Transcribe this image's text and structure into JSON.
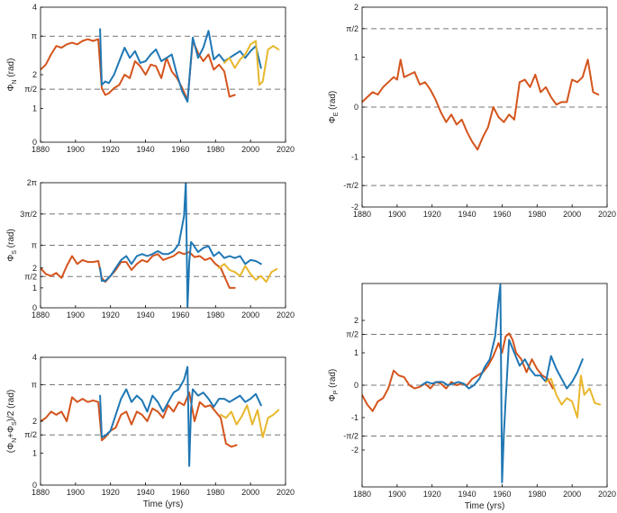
{
  "colors": {
    "blue": "#1f77b4",
    "orange": "#d4541c",
    "yellow": "#e8b72c",
    "ref_line": "#777777",
    "axis": "#000000"
  },
  "chart_data": [
    {
      "id": "phiN",
      "type": "line",
      "ylabel": "Φ_N (rad)",
      "ylabel_main": "Φ",
      "ylabel_sub": "N",
      "ylabel_tail": " (rad)",
      "xlabel": "",
      "xlim": [
        1880,
        2020
      ],
      "ylim": [
        0,
        4
      ],
      "xticks": [
        1880,
        1900,
        1920,
        1940,
        1960,
        1980,
        2000,
        2020
      ],
      "xtick_labels": [
        "1880",
        "1900",
        "1920",
        "1940",
        "1960",
        "1980",
        "2000",
        "2020"
      ],
      "yticks": [
        0,
        1,
        1.5708,
        2,
        3.1416,
        4
      ],
      "ytick_labels": [
        "0",
        "1",
        "π/2",
        "2",
        "π",
        "4"
      ],
      "ref_lines": [
        1.5708,
        3.1416
      ],
      "series": [
        {
          "color": "orange",
          "x": [
            1880,
            1883,
            1886,
            1889,
            1892,
            1895,
            1898,
            1901,
            1904,
            1907,
            1910,
            1913,
            1915,
            1917,
            1919,
            1922,
            1925,
            1928,
            1931,
            1934,
            1937,
            1940,
            1943,
            1946,
            1949,
            1952,
            1955,
            1958,
            1961,
            1964,
            1967,
            1970,
            1973,
            1976,
            1979,
            1982,
            1985,
            1988,
            1991
          ],
          "y": [
            2.15,
            2.3,
            2.6,
            2.85,
            2.8,
            2.9,
            2.95,
            2.9,
            3.0,
            3.05,
            3.0,
            3.05,
            1.6,
            1.4,
            1.45,
            1.6,
            1.7,
            2.0,
            1.9,
            2.4,
            2.25,
            2.0,
            2.3,
            2.25,
            1.9,
            2.5,
            2.1,
            1.9,
            1.6,
            1.25,
            3.0,
            2.65,
            2.4,
            2.6,
            2.15,
            2.3,
            2.1,
            1.35,
            1.4
          ]
        },
        {
          "color": "blue",
          "x": [
            1914,
            1915,
            1917,
            1919,
            1922,
            1925,
            1928,
            1931,
            1934,
            1937,
            1940,
            1943,
            1946,
            1949,
            1952,
            1955,
            1958,
            1961,
            1964,
            1967,
            1970,
            1973,
            1976,
            1979,
            1982,
            1985,
            1988,
            1991,
            1994,
            1997,
            2000,
            2003,
            2006
          ],
          "y": [
            3.35,
            1.7,
            1.8,
            1.75,
            2.0,
            2.4,
            2.8,
            2.5,
            2.7,
            2.35,
            2.4,
            2.6,
            2.75,
            2.4,
            2.5,
            2.6,
            2.0,
            1.5,
            1.2,
            3.1,
            2.5,
            2.8,
            3.3,
            2.45,
            2.6,
            2.4,
            2.5,
            2.6,
            2.7,
            2.5,
            2.7,
            2.85,
            2.2
          ]
        },
        {
          "color": "yellow",
          "x": [
            1985,
            1988,
            1991,
            1994,
            1997,
            2000,
            2003,
            2005,
            2007,
            2010,
            2013,
            2016
          ],
          "y": [
            2.35,
            2.5,
            2.2,
            2.45,
            2.6,
            2.9,
            3.0,
            1.7,
            1.8,
            2.75,
            2.85,
            2.75
          ]
        }
      ]
    },
    {
      "id": "phiE",
      "type": "line",
      "ylabel": "Φ_E (rad)",
      "ylabel_main": "Φ",
      "ylabel_sub": "E",
      "ylabel_tail": " (rad)",
      "xlabel": "",
      "xlim": [
        1880,
        2020
      ],
      "ylim": [
        -2,
        2
      ],
      "xticks": [
        1880,
        1900,
        1920,
        1940,
        1960,
        1980,
        2000,
        2020
      ],
      "xtick_labels": [
        "1880",
        "1900",
        "1920",
        "1940",
        "1960",
        "1980",
        "2000",
        "2020"
      ],
      "yticks": [
        -2,
        -1.5708,
        -1,
        0,
        1,
        1.5708,
        2
      ],
      "ytick_labels": [
        "-2",
        "-π/2",
        "-1",
        "0",
        "1",
        "π/2",
        "2"
      ],
      "ref_lines": [
        -1.5708,
        0,
        1.5708
      ],
      "series": [
        {
          "color": "orange",
          "x": [
            1880,
            1883,
            1886,
            1889,
            1892,
            1895,
            1898,
            1900,
            1902,
            1904,
            1907,
            1910,
            1913,
            1916,
            1919,
            1922,
            1925,
            1928,
            1931,
            1934,
            1937,
            1940,
            1943,
            1946,
            1949,
            1952,
            1955,
            1958,
            1961,
            1964,
            1967,
            1970,
            1973,
            1976,
            1979,
            1982,
            1985,
            1988,
            1991,
            1994,
            1997,
            2000,
            2003,
            2006,
            2009,
            2012,
            2015
          ],
          "y": [
            0.1,
            0.2,
            0.3,
            0.25,
            0.4,
            0.5,
            0.6,
            0.55,
            0.95,
            0.6,
            0.65,
            0.7,
            0.45,
            0.5,
            0.35,
            0.15,
            -0.1,
            -0.3,
            -0.15,
            -0.35,
            -0.25,
            -0.5,
            -0.7,
            -0.85,
            -0.6,
            -0.4,
            0.0,
            -0.2,
            -0.3,
            -0.15,
            -0.25,
            0.5,
            0.55,
            0.4,
            0.65,
            0.3,
            0.4,
            0.2,
            0.05,
            0.1,
            0.1,
            0.55,
            0.5,
            0.6,
            0.95,
            0.3,
            0.25
          ]
        }
      ]
    },
    {
      "id": "phiS",
      "type": "line",
      "ylabel": "Φ_S (rad)",
      "ylabel_main": "Φ",
      "ylabel_sub": "S",
      "ylabel_tail": " (rad)",
      "xlabel": "",
      "xlim": [
        1880,
        2020
      ],
      "ylim": [
        0,
        6.2832
      ],
      "xticks": [
        1880,
        1900,
        1920,
        1940,
        1960,
        1980,
        2000,
        2020
      ],
      "xtick_labels": [
        "1880",
        "1900",
        "1920",
        "1940",
        "1960",
        "1980",
        "2000",
        "2020"
      ],
      "yticks": [
        0,
        1,
        1.5708,
        2,
        3.1416,
        4.7124,
        6.2832
      ],
      "ytick_labels": [
        "0",
        "1",
        "π/2",
        "2",
        "π",
        "3π/2",
        "2π"
      ],
      "ref_lines": [
        1.5708,
        3.1416,
        4.7124
      ],
      "series": [
        {
          "color": "orange",
          "x": [
            1880,
            1883,
            1886,
            1889,
            1892,
            1895,
            1898,
            1901,
            1904,
            1907,
            1910,
            1913,
            1915,
            1917,
            1920,
            1923,
            1926,
            1929,
            1932,
            1935,
            1938,
            1941,
            1944,
            1947,
            1950,
            1953,
            1956,
            1959,
            1962,
            1965,
            1968,
            1971,
            1974,
            1977,
            1980,
            1983,
            1986,
            1988,
            1991
          ],
          "y": [
            2.0,
            1.7,
            1.6,
            1.75,
            1.5,
            2.1,
            2.6,
            2.2,
            2.4,
            2.3,
            2.3,
            2.35,
            1.5,
            1.3,
            1.6,
            1.9,
            2.3,
            2.3,
            1.9,
            2.2,
            2.4,
            2.3,
            2.6,
            2.7,
            2.4,
            2.5,
            2.6,
            2.8,
            2.7,
            2.8,
            2.55,
            2.6,
            2.4,
            2.5,
            2.2,
            2.0,
            1.4,
            1.0,
            1.0
          ]
        },
        {
          "color": "blue",
          "x": [
            1914,
            1915,
            1917,
            1920,
            1923,
            1926,
            1929,
            1932,
            1935,
            1938,
            1941,
            1944,
            1947,
            1950,
            1953,
            1956,
            1959,
            1962,
            1963,
            1964,
            1965,
            1966,
            1967,
            1970,
            1973,
            1976,
            1979,
            1982,
            1985,
            1988,
            1991,
            1994,
            1997,
            2000,
            2003,
            2006
          ],
          "y": [
            2.0,
            1.35,
            1.35,
            1.6,
            2.0,
            2.4,
            2.6,
            2.2,
            2.6,
            2.7,
            2.6,
            2.7,
            2.85,
            2.7,
            2.7,
            2.85,
            3.2,
            4.6,
            6.3,
            0.05,
            2.3,
            3.3,
            3.2,
            2.8,
            3.0,
            3.1,
            2.6,
            2.8,
            2.5,
            2.6,
            2.5,
            2.6,
            2.2,
            2.4,
            2.35,
            2.2
          ]
        },
        {
          "color": "yellow",
          "x": [
            1982,
            1985,
            1988,
            1991,
            1994,
            1997,
            2000,
            2003,
            2006,
            2009,
            2012,
            2015
          ],
          "y": [
            2.0,
            2.2,
            1.9,
            1.8,
            1.6,
            2.1,
            1.7,
            1.4,
            1.6,
            1.3,
            1.8,
            1.95
          ]
        }
      ]
    },
    {
      "id": "phiNS",
      "type": "line",
      "ylabel": "(Φ_N+Φ_S)/2 (rad)",
      "ylabel_main": "(Φ",
      "ylabel_sub": "N",
      "ylabel_mid": "+Φ",
      "ylabel_sub2": "S",
      "ylabel_tail": ")/2 (rad)",
      "xlabel": "Time (yrs)",
      "xlim": [
        1880,
        2020
      ],
      "ylim": [
        0,
        4
      ],
      "xticks": [
        1880,
        1900,
        1920,
        1940,
        1960,
        1980,
        2000,
        2020
      ],
      "xtick_labels": [
        "1880",
        "1900",
        "1920",
        "1940",
        "1960",
        "1980",
        "2000",
        "2020"
      ],
      "yticks": [
        0,
        1,
        1.5708,
        2,
        3.1416,
        4
      ],
      "ytick_labels": [
        "0",
        "1",
        "π/2",
        "2",
        "π",
        "4"
      ],
      "ref_lines": [
        1.5708,
        3.1416
      ],
      "series": [
        {
          "color": "orange",
          "x": [
            1880,
            1883,
            1886,
            1889,
            1892,
            1895,
            1898,
            1901,
            1904,
            1907,
            1910,
            1913,
            1915,
            1917,
            1920,
            1923,
            1926,
            1929,
            1932,
            1935,
            1938,
            1941,
            1944,
            1947,
            1950,
            1953,
            1956,
            1959,
            1962,
            1965,
            1968,
            1971,
            1974,
            1977,
            1980,
            1983,
            1986,
            1989,
            1992
          ],
          "y": [
            2.0,
            2.1,
            2.3,
            2.2,
            2.3,
            2.0,
            2.75,
            2.6,
            2.7,
            2.6,
            2.65,
            2.6,
            1.4,
            1.5,
            1.7,
            1.8,
            2.2,
            2.3,
            1.9,
            2.3,
            2.2,
            2.0,
            2.4,
            2.3,
            2.1,
            2.5,
            2.3,
            2.6,
            2.5,
            2.9,
            2.0,
            2.6,
            2.45,
            2.5,
            2.3,
            2.1,
            1.3,
            1.2,
            1.25
          ]
        },
        {
          "color": "blue",
          "x": [
            1914,
            1915,
            1917,
            1920,
            1923,
            1926,
            1929,
            1932,
            1935,
            1938,
            1941,
            1944,
            1947,
            1950,
            1953,
            1956,
            1959,
            1962,
            1964,
            1965,
            1966,
            1967,
            1970,
            1973,
            1976,
            1979,
            1982,
            1985,
            1988,
            1991,
            1994,
            1997,
            2000,
            2003,
            2006
          ],
          "y": [
            2.8,
            1.5,
            1.55,
            1.7,
            2.2,
            2.7,
            3.0,
            2.6,
            2.8,
            2.65,
            2.3,
            2.8,
            2.6,
            2.3,
            2.6,
            2.9,
            3.0,
            3.3,
            3.7,
            0.6,
            2.4,
            3.0,
            2.8,
            2.9,
            2.7,
            2.45,
            2.7,
            2.7,
            2.6,
            2.7,
            2.8,
            2.6,
            2.7,
            2.85,
            2.5
          ]
        },
        {
          "color": "yellow",
          "x": [
            1983,
            1986,
            1989,
            1992,
            1995,
            1998,
            2001,
            2004,
            2007,
            2010,
            2013,
            2016
          ],
          "y": [
            2.2,
            2.1,
            2.3,
            1.9,
            2.15,
            2.5,
            1.9,
            2.35,
            1.5,
            2.1,
            2.2,
            2.35
          ]
        }
      ]
    },
    {
      "id": "phiP",
      "type": "line",
      "ylabel": "Φ_P (rad)",
      "ylabel_main": "Φ",
      "ylabel_sub": "P",
      "ylabel_tail": " (rad)",
      "xlabel": "Time (yrs)",
      "xlim": [
        1880,
        2020
      ],
      "ylim": [
        -3.14,
        3.14
      ],
      "xticks": [
        1880,
        1900,
        1920,
        1940,
        1960,
        1980,
        2000,
        2020
      ],
      "xtick_labels": [
        "1880",
        "1900",
        "1920",
        "1940",
        "1960",
        "1980",
        "2000",
        "2020"
      ],
      "yticks": [
        -2,
        -1.5708,
        -1,
        0,
        1,
        1.5708,
        2
      ],
      "ytick_labels": [
        "-2",
        "-π/2",
        "-1",
        "0",
        "1",
        "π/2",
        "2"
      ],
      "ref_lines": [
        -1.5708,
        0,
        1.5708
      ],
      "series": [
        {
          "color": "orange",
          "x": [
            1880,
            1883,
            1886,
            1889,
            1892,
            1895,
            1898,
            1901,
            1904,
            1907,
            1910,
            1913,
            1916,
            1919,
            1922,
            1925,
            1928,
            1931,
            1934,
            1937,
            1940,
            1943,
            1946,
            1949,
            1952,
            1955,
            1958,
            1960,
            1962,
            1964,
            1966,
            1968,
            1971,
            1974,
            1977,
            1980,
            1983,
            1986,
            1989
          ],
          "y": [
            -0.3,
            -0.6,
            -0.8,
            -0.5,
            -0.4,
            -0.1,
            0.45,
            0.3,
            0.25,
            0.0,
            -0.1,
            -0.05,
            0.05,
            -0.1,
            0.1,
            0.05,
            -0.1,
            0.1,
            0.0,
            0.05,
            0.0,
            0.2,
            0.3,
            0.4,
            0.6,
            0.9,
            1.3,
            1.0,
            1.5,
            1.6,
            1.4,
            1.0,
            0.8,
            0.4,
            0.8,
            0.5,
            0.3,
            0.2,
            -0.1
          ]
        },
        {
          "color": "blue",
          "x": [
            1914,
            1917,
            1920,
            1923,
            1926,
            1929,
            1932,
            1935,
            1938,
            1941,
            1944,
            1947,
            1950,
            1953,
            1956,
            1958,
            1959,
            1960,
            1961,
            1962,
            1964,
            1967,
            1970,
            1973,
            1976,
            1979,
            1982,
            1985,
            1988,
            1991,
            1994,
            1997,
            2000,
            2003,
            2006
          ],
          "y": [
            0.0,
            0.1,
            0.05,
            0.1,
            0.1,
            0.0,
            0.05,
            0.1,
            0.05,
            -0.1,
            0.0,
            0.2,
            0.55,
            0.8,
            1.5,
            2.6,
            3.1,
            -3.0,
            -1.5,
            -0.5,
            1.4,
            1.0,
            0.6,
            0.8,
            0.5,
            0.3,
            0.3,
            0.1,
            0.9,
            0.5,
            0.2,
            -0.1,
            0.1,
            0.4,
            0.8
          ]
        },
        {
          "color": "yellow",
          "x": [
            1985,
            1988,
            1991,
            1994,
            1997,
            2000,
            2003,
            2005,
            2007,
            2010,
            2013,
            2016
          ],
          "y": [
            0.1,
            0.2,
            -0.3,
            -0.6,
            -0.4,
            -0.5,
            -1.0,
            0.3,
            -0.3,
            -0.1,
            -0.55,
            -0.6
          ]
        }
      ]
    }
  ]
}
